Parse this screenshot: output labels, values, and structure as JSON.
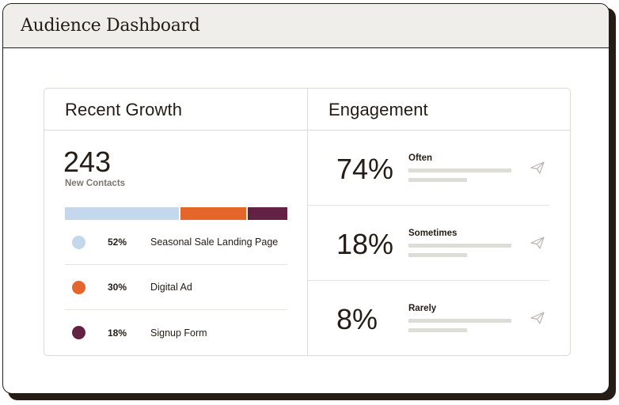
{
  "window": {
    "title": "Audience Dashboard"
  },
  "growth": {
    "title": "Recent Growth",
    "total": "243",
    "total_label": "New Contacts",
    "sources": [
      {
        "percent": "52%",
        "share": 52,
        "label": "Seasonal Sale Landing Page",
        "color": "#c5d7ed"
      },
      {
        "percent": "30%",
        "share": 30,
        "label": "Digital Ad",
        "color": "#e5662a"
      },
      {
        "percent": "18%",
        "share": 18,
        "label": "Signup Form",
        "color": "#632243"
      }
    ]
  },
  "engagement": {
    "title": "Engagement",
    "rows": [
      {
        "percent": "74%",
        "label": "Often",
        "icon": "send-icon"
      },
      {
        "percent": "18%",
        "label": "Sometimes",
        "icon": "send-icon"
      },
      {
        "percent": "8%",
        "label": "Rarely",
        "icon": "send-icon"
      }
    ]
  }
}
